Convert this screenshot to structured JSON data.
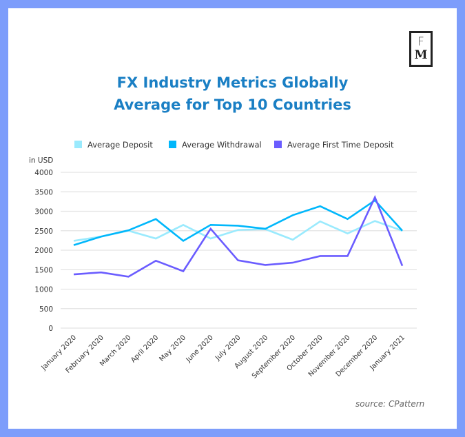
{
  "logo": {
    "line1": "F",
    "line2": "M"
  },
  "title_line1": "FX Industry Metrics Globally",
  "title_line2": "Average for Top 10 Countries",
  "source": "source: CPattern",
  "chart_data": {
    "type": "line",
    "title": "FX Industry Metrics Globally Average for Top 10 Countries",
    "ylabel": "in USD",
    "xlabel": "",
    "ylim": [
      0,
      4000
    ],
    "yticks": [
      0,
      500,
      1000,
      1500,
      2000,
      2500,
      3000,
      3500,
      4000
    ],
    "grid": true,
    "legend": "top",
    "categories": [
      "January 2020",
      "February 2020",
      "March 2020",
      "April 2020",
      "May 2020",
      "June 2020",
      "July 2020",
      "August 2020",
      "September 2020",
      "October 2020",
      "November 2020",
      "December 2020",
      "January 2021"
    ],
    "series": [
      {
        "name": "Average Deposit",
        "color": "#9aeafd",
        "values": [
          2240,
          2350,
          2500,
          2300,
          2650,
          2300,
          2520,
          2540,
          2270,
          2740,
          2430,
          2750,
          2500
        ]
      },
      {
        "name": "Average Withdrawal",
        "color": "#00b7fb",
        "values": [
          2130,
          2350,
          2510,
          2800,
          2240,
          2650,
          2630,
          2550,
          2900,
          3130,
          2800,
          3280,
          2500
        ]
      },
      {
        "name": "Average First Time Deposit",
        "color": "#6a5cff",
        "values": [
          1380,
          1430,
          1320,
          1730,
          1460,
          2550,
          1740,
          1620,
          1680,
          1850,
          1850,
          3360,
          1600
        ]
      }
    ]
  }
}
